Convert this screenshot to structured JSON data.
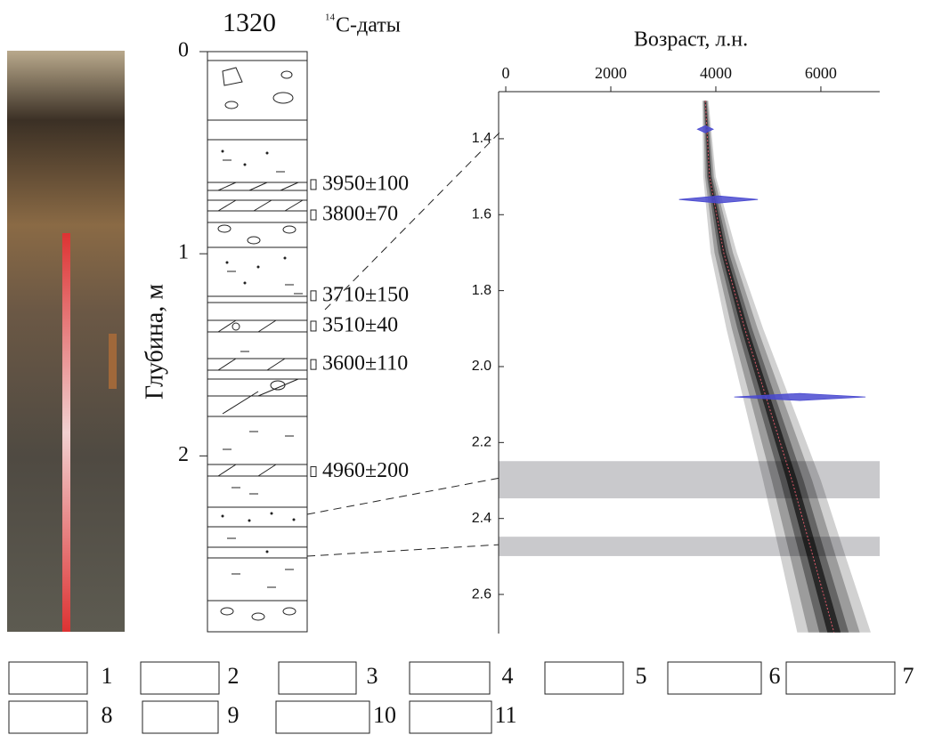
{
  "column": {
    "title": "1320",
    "dates_title_sup": "14",
    "dates_title": "С-даты",
    "depth_label": "Глубина, м",
    "depth_lim": [
      0,
      2.87
    ],
    "depth_ticks": [
      0,
      1,
      2
    ],
    "samples": [
      {
        "label": "3950±100",
        "depth": 0.66
      },
      {
        "label": "3800±70",
        "depth": 0.81
      },
      {
        "label": "3710±150",
        "depth": 1.21
      },
      {
        "label": "3510±40",
        "depth": 1.36
      },
      {
        "label": "3600±110",
        "depth": 1.55
      },
      {
        "label": "4960±200",
        "depth": 2.08
      }
    ]
  },
  "chart_data": {
    "type": "age-depth",
    "xlabel": "Возраст, л.н.",
    "xlim": [
      -136,
      7120
    ],
    "xticks": [
      0,
      2000,
      4000,
      6000
    ],
    "ylim": [
      1.276,
      2.703
    ],
    "yticks": [
      1.4,
      1.6,
      1.8,
      {
        "value": 2,
        "label": "2.0"
      },
      2.2,
      2.4,
      2.6
    ],
    "model": {
      "depth": [
        1.3,
        1.5,
        1.7,
        1.9,
        2.1,
        2.3,
        2.5,
        2.7
      ],
      "age": [
        3800,
        3880,
        4150,
        4550,
        5000,
        5450,
        5850,
        6250
      ],
      "error": [
        60,
        120,
        250,
        350,
        450,
        550,
        620,
        700
      ]
    },
    "dated_samples": {
      "depth": [
        1.375,
        1.56,
        2.08
      ],
      "age": [
        3800,
        4050,
        5600
      ],
      "error": [
        150,
        750,
        1250
      ]
    },
    "bands": [
      [
        2.249,
        2.347
      ],
      [
        2.448,
        2.499
      ]
    ]
  },
  "legend": [
    "1",
    "2",
    "3",
    "4",
    "5",
    "6",
    "7",
    "8",
    "9",
    "10",
    "11"
  ]
}
